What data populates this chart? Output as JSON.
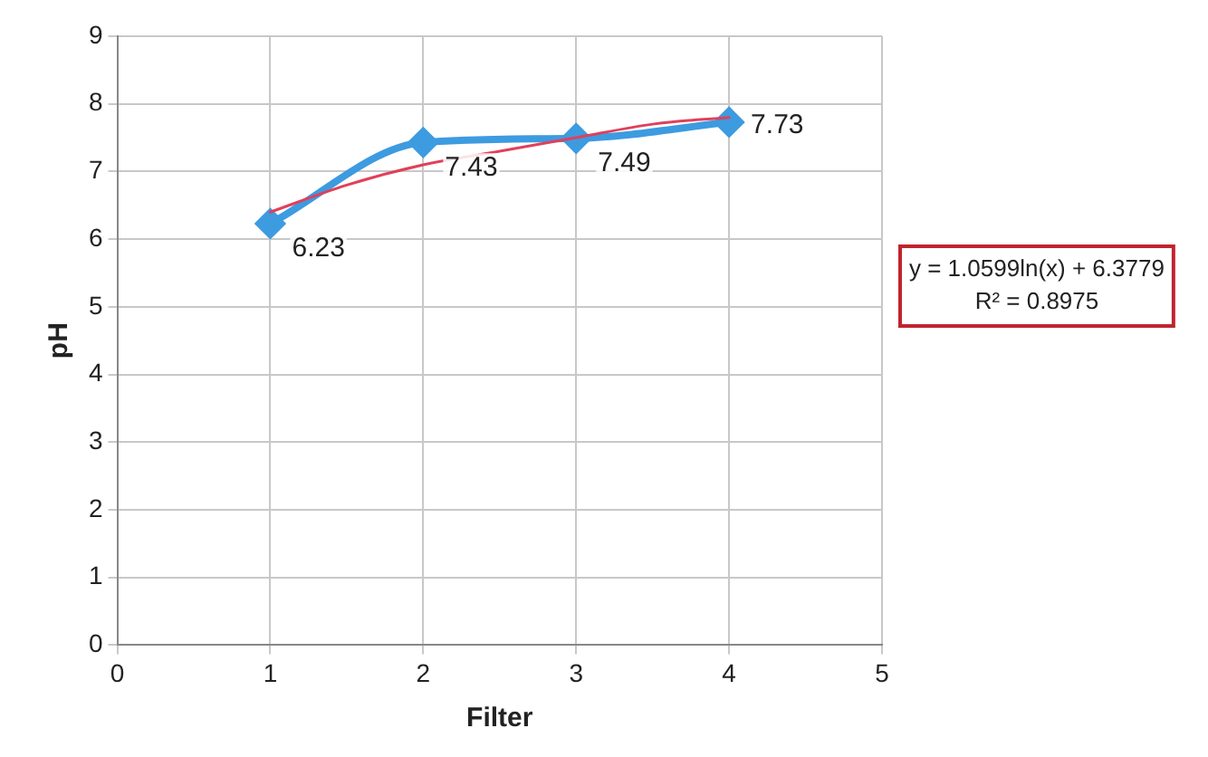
{
  "chart_data": {
    "type": "line",
    "xlabel": "Filter",
    "ylabel": "pH",
    "xlim": [
      0,
      5
    ],
    "xticks": [
      0,
      1,
      2,
      3,
      4,
      5
    ],
    "ylim": [
      0,
      9
    ],
    "yticks": [
      0,
      1,
      2,
      3,
      4,
      5,
      6,
      7,
      8,
      9
    ],
    "grid": true,
    "legend": false,
    "marker": "diamond",
    "series": [
      {
        "type": "line",
        "color": "#3d9be0",
        "x": [
          1,
          2,
          3,
          4
        ],
        "values": [
          6.23,
          7.43,
          7.49,
          7.73
        ],
        "value_labels": [
          "6.23",
          "7.43",
          "7.49",
          "7.73"
        ]
      },
      {
        "type": "line",
        "color": "#e0405a",
        "marker": "none",
        "x": [
          1,
          1.5,
          2,
          2.5,
          3,
          3.5,
          4
        ],
        "values": [
          6.4,
          6.8,
          7.1,
          7.3,
          7.5,
          7.7,
          7.8
        ]
      }
    ],
    "annotations": [
      "y = 1.0599ln(x) + 6.3779",
      "R² = 0.8975"
    ]
  }
}
